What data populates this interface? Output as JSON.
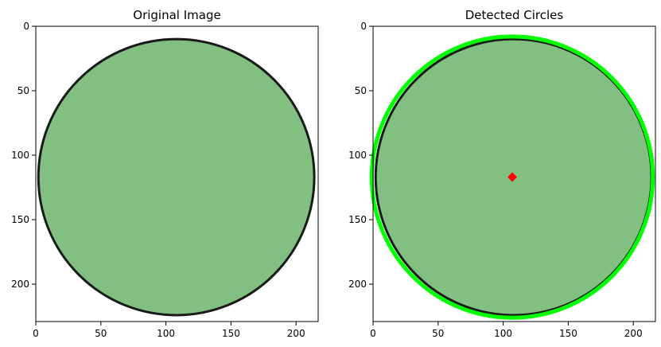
{
  "chart_data": [
    {
      "type": "image",
      "title": "Original Image",
      "xlim": [
        0,
        217
      ],
      "ylim": [
        229,
        0
      ],
      "xticks": [
        0,
        50,
        100,
        150,
        200
      ],
      "yticks": [
        0,
        50,
        100,
        150,
        200
      ],
      "circle": {
        "center": [
          108,
          117
        ],
        "radius": 106
      },
      "colors": {
        "fill": "#82c082",
        "outline": "#1a1a1a"
      }
    },
    {
      "type": "image",
      "title": "Detected Circles",
      "xlim": [
        0,
        217
      ],
      "ylim": [
        229,
        0
      ],
      "xticks": [
        0,
        50,
        100,
        150,
        200
      ],
      "yticks": [
        0,
        50,
        100,
        150,
        200
      ],
      "circle": {
        "center": [
          108,
          117
        ],
        "radius": 106
      },
      "detected_circle": {
        "center": [
          107,
          117
        ],
        "radius": 108
      },
      "detected_center_marker": [
        107,
        117
      ],
      "colors": {
        "fill": "#82c082",
        "outline": "#1a1a1a",
        "detection": "#00ff00",
        "center": "#ff0000"
      }
    }
  ]
}
